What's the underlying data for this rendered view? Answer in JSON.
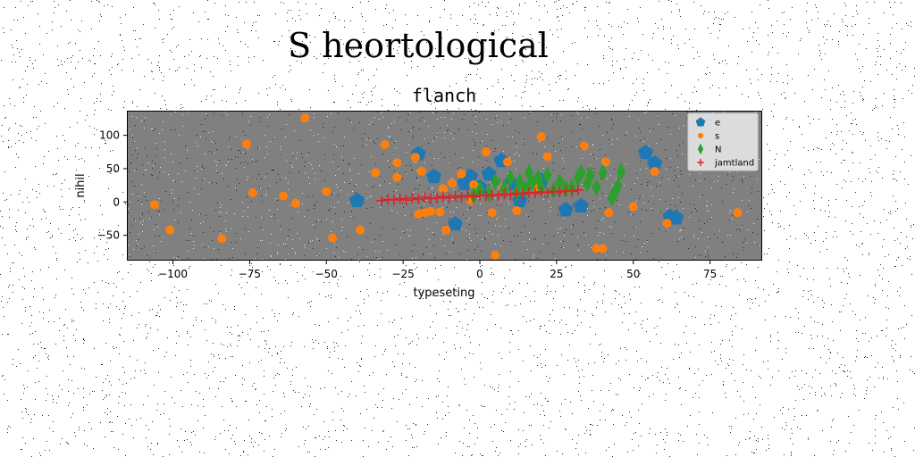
{
  "figure": {
    "suptitle": "S heortological"
  },
  "colors": {
    "figure_background": "#ffffff",
    "axes_background": "#808080",
    "noise_dark": "#000000",
    "noise_light": "#ffffff"
  },
  "chart_data": {
    "type": "scatter",
    "title": "flanch",
    "xlabel": "typeseting",
    "ylabel": "nihil",
    "xlim": [
      -115,
      92
    ],
    "ylim": [
      -88,
      137
    ],
    "xticks": [
      -100,
      -75,
      -50,
      -25,
      0,
      25,
      50,
      75
    ],
    "xtick_labels": [
      "−100",
      "−75",
      "−50",
      "−25",
      "0",
      "25",
      "50",
      "75"
    ],
    "yticks": [
      -50,
      0,
      50,
      100
    ],
    "ytick_labels": [
      "−50",
      "0",
      "50",
      "100"
    ],
    "grid": false,
    "legend_placement": "top-right",
    "series": [
      {
        "name": "e",
        "marker": "pentagon",
        "color": "#1f77b4",
        "points": [
          [
            -40,
            2
          ],
          [
            -20,
            72
          ],
          [
            -15,
            38
          ],
          [
            -8,
            -33
          ],
          [
            -5,
            28
          ],
          [
            -3,
            38
          ],
          [
            0,
            22
          ],
          [
            3,
            42
          ],
          [
            7,
            62
          ],
          [
            10,
            28
          ],
          [
            13,
            2
          ],
          [
            20,
            32
          ],
          [
            28,
            -12
          ],
          [
            33,
            -6
          ],
          [
            54,
            74
          ],
          [
            57,
            58
          ],
          [
            62,
            -22
          ],
          [
            64,
            -24
          ]
        ]
      },
      {
        "name": "s",
        "marker": "circle",
        "color": "#ff7f0e",
        "points": [
          [
            -106,
            -4
          ],
          [
            -101,
            -42
          ],
          [
            -84,
            -55
          ],
          [
            -76,
            87
          ],
          [
            -74,
            14
          ],
          [
            -64,
            9
          ],
          [
            -60,
            -2
          ],
          [
            -57,
            126
          ],
          [
            -50,
            16
          ],
          [
            -48,
            -54
          ],
          [
            -39,
            -42
          ],
          [
            -34,
            44
          ],
          [
            -31,
            86
          ],
          [
            -27,
            59
          ],
          [
            -27,
            37
          ],
          [
            -21,
            67
          ],
          [
            -20,
            -18
          ],
          [
            -19,
            46
          ],
          [
            -18,
            -16
          ],
          [
            -16,
            -14
          ],
          [
            -13,
            -15
          ],
          [
            -12,
            20
          ],
          [
            -11,
            -42
          ],
          [
            -9,
            28
          ],
          [
            -6,
            42
          ],
          [
            -3,
            2
          ],
          [
            -2,
            26
          ],
          [
            -1,
            22
          ],
          [
            2,
            75
          ],
          [
            4,
            -16
          ],
          [
            5,
            -80
          ],
          [
            8,
            22
          ],
          [
            9,
            60
          ],
          [
            12,
            -13
          ],
          [
            18,
            22
          ],
          [
            20,
            98
          ],
          [
            22,
            68
          ],
          [
            34,
            84
          ],
          [
            38,
            -70
          ],
          [
            40,
            -70
          ],
          [
            41,
            60
          ],
          [
            42,
            -16
          ],
          [
            50,
            -7
          ],
          [
            57,
            46
          ],
          [
            61,
            -32
          ],
          [
            84,
            -16
          ]
        ]
      },
      {
        "name": "N",
        "marker": "thin_diamond",
        "color": "#2ca02c",
        "points": [
          [
            -2,
            10
          ],
          [
            0,
            18
          ],
          [
            3,
            12
          ],
          [
            5,
            30
          ],
          [
            8,
            20
          ],
          [
            10,
            36
          ],
          [
            12,
            14
          ],
          [
            13,
            30
          ],
          [
            15,
            20
          ],
          [
            16,
            44
          ],
          [
            17,
            28
          ],
          [
            19,
            36
          ],
          [
            20,
            22
          ],
          [
            22,
            40
          ],
          [
            24,
            18
          ],
          [
            26,
            30
          ],
          [
            28,
            20
          ],
          [
            30,
            22
          ],
          [
            32,
            36
          ],
          [
            33,
            44
          ],
          [
            35,
            28
          ],
          [
            36,
            40
          ],
          [
            38,
            22
          ],
          [
            40,
            44
          ],
          [
            43,
            6
          ],
          [
            44,
            14
          ],
          [
            45,
            24
          ],
          [
            46,
            46
          ]
        ]
      },
      {
        "name": "jamtland",
        "marker": "plus",
        "color": "#d62728",
        "points": [
          [
            -32,
            2
          ],
          [
            -30,
            4
          ],
          [
            -28,
            3
          ],
          [
            -26,
            5
          ],
          [
            -24,
            3
          ],
          [
            -22,
            6
          ],
          [
            -20,
            4
          ],
          [
            -18,
            7
          ],
          [
            -16,
            5
          ],
          [
            -14,
            6
          ],
          [
            -12,
            8
          ],
          [
            -10,
            6
          ],
          [
            -8,
            9
          ],
          [
            -6,
            7
          ],
          [
            -4,
            10
          ],
          [
            -2,
            8
          ],
          [
            0,
            10
          ],
          [
            2,
            9
          ],
          [
            4,
            11
          ],
          [
            6,
            10
          ],
          [
            8,
            12
          ],
          [
            10,
            11
          ],
          [
            12,
            13
          ],
          [
            14,
            12
          ],
          [
            16,
            14
          ],
          [
            18,
            13
          ],
          [
            20,
            15
          ],
          [
            22,
            14
          ],
          [
            24,
            16
          ],
          [
            26,
            15
          ],
          [
            28,
            17
          ],
          [
            30,
            16
          ],
          [
            32,
            18
          ]
        ]
      }
    ]
  }
}
